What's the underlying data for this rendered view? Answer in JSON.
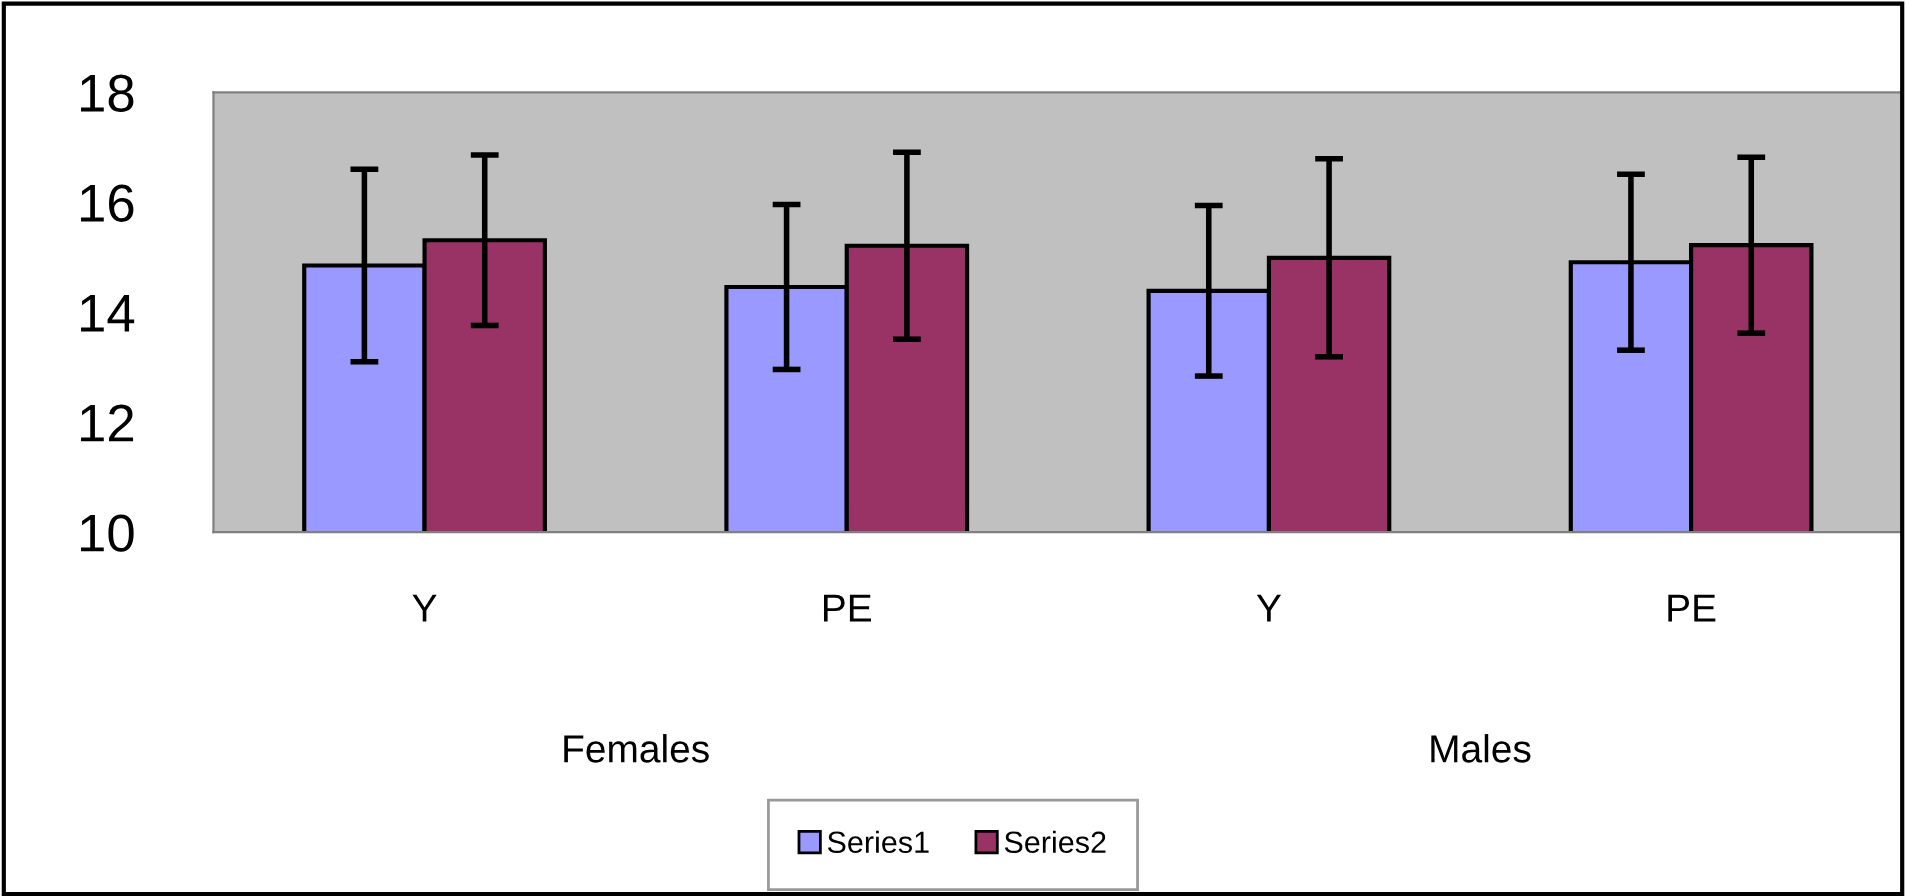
{
  "chart_data": {
    "type": "bar",
    "categories": [
      "Y",
      "PE",
      "Y",
      "PE"
    ],
    "series": [
      {
        "name": "Series1",
        "color": "#9999ff",
        "values": [
          14.85,
          14.46,
          14.39,
          14.91
        ],
        "errors": [
          1.75,
          1.5,
          1.55,
          1.6
        ]
      },
      {
        "name": "Series2",
        "color": "#993366",
        "values": [
          15.31,
          15.21,
          14.99,
          15.22
        ],
        "errors": [
          1.55,
          1.7,
          1.8,
          1.6
        ]
      }
    ],
    "annotations": [
      "Females",
      "Males"
    ],
    "ylim": [
      10,
      18
    ],
    "yticks": [
      10,
      12,
      14,
      16,
      18
    ],
    "grid": false,
    "legend": "bottom"
  }
}
